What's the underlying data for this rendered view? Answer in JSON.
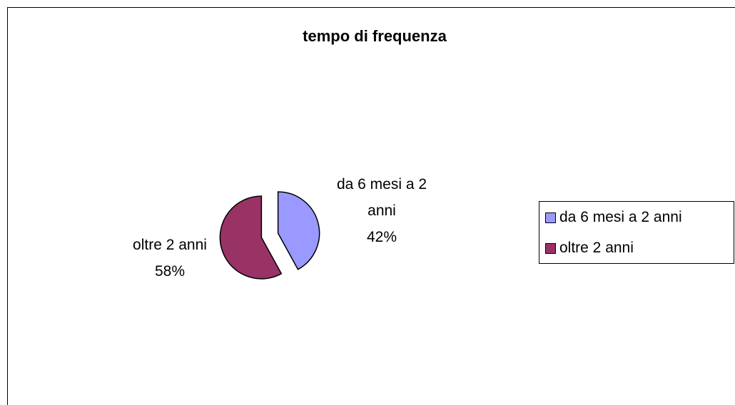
{
  "chart_data": {
    "type": "pie",
    "title": "tempo di frequenza",
    "categories": [
      "da 6 mesi a 2 anni",
      "oltre 2 anni"
    ],
    "values": [
      42,
      58
    ],
    "value_labels": [
      "42%",
      "58%"
    ],
    "colors": [
      "#9999ff",
      "#993366"
    ],
    "legend": "right"
  }
}
